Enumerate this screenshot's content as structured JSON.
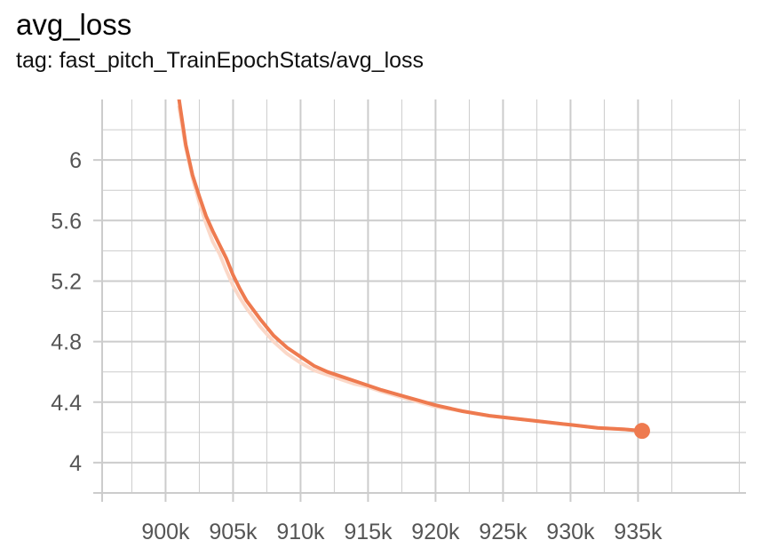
{
  "header": {
    "title": "avg_loss",
    "subtitle": "tag: fast_pitch_TrainEpochStats/avg_loss"
  },
  "colors": {
    "smoothed": "#ee7a4f",
    "raw": "#fbd8c8",
    "grid": "#cccccc",
    "axis": "#cccccc"
  },
  "chart_data": {
    "type": "line",
    "title": "avg_loss",
    "subtitle": "tag: fast_pitch_TrainEpochStats/avg_loss",
    "xlim": [
      895300,
      943000
    ],
    "ylim": [
      3.8,
      6.4
    ],
    "x_ticks": [
      900000,
      905000,
      910000,
      915000,
      920000,
      925000,
      930000,
      935000
    ],
    "x_tick_labels": [
      "900k",
      "905k",
      "910k",
      "915k",
      "920k",
      "925k",
      "930k",
      "935k"
    ],
    "y_ticks": [
      4,
      4.4,
      4.8,
      5.2,
      5.6,
      6
    ],
    "y_tick_labels": [
      "4",
      "4.4",
      "4.8",
      "5.2",
      "5.6",
      "6"
    ],
    "grid": true,
    "series": [
      {
        "role": "raw",
        "x": [
          901000,
          901500,
          902000,
          902500,
          903000,
          903500,
          904000,
          904500,
          905000,
          905500,
          906000,
          907000,
          908000,
          909000,
          910000,
          911000,
          912000,
          913000,
          914000,
          915000,
          916000,
          918000,
          920000,
          922000,
          924000,
          926000,
          928000,
          930000,
          932000,
          934000,
          935300
        ],
        "values": [
          6.35,
          6.08,
          5.88,
          5.72,
          5.58,
          5.46,
          5.38,
          5.27,
          5.17,
          5.09,
          5.02,
          4.9,
          4.8,
          4.72,
          4.66,
          4.61,
          4.58,
          4.55,
          4.52,
          4.5,
          4.47,
          4.42,
          4.37,
          4.34,
          4.31,
          4.29,
          4.27,
          4.25,
          4.23,
          4.22,
          4.21
        ]
      },
      {
        "role": "smoothed",
        "x": [
          901000,
          901500,
          902000,
          902500,
          903000,
          903500,
          904000,
          904500,
          905000,
          905500,
          906000,
          907000,
          908000,
          909000,
          910000,
          911000,
          912000,
          913000,
          914000,
          915000,
          916000,
          918000,
          920000,
          922000,
          924000,
          926000,
          928000,
          930000,
          932000,
          934000,
          935300
        ],
        "values": [
          6.4,
          6.1,
          5.9,
          5.76,
          5.63,
          5.53,
          5.44,
          5.35,
          5.24,
          5.15,
          5.07,
          4.95,
          4.84,
          4.76,
          4.7,
          4.64,
          4.6,
          4.57,
          4.54,
          4.51,
          4.48,
          4.43,
          4.38,
          4.34,
          4.31,
          4.29,
          4.27,
          4.25,
          4.23,
          4.22,
          4.21
        ]
      }
    ]
  }
}
